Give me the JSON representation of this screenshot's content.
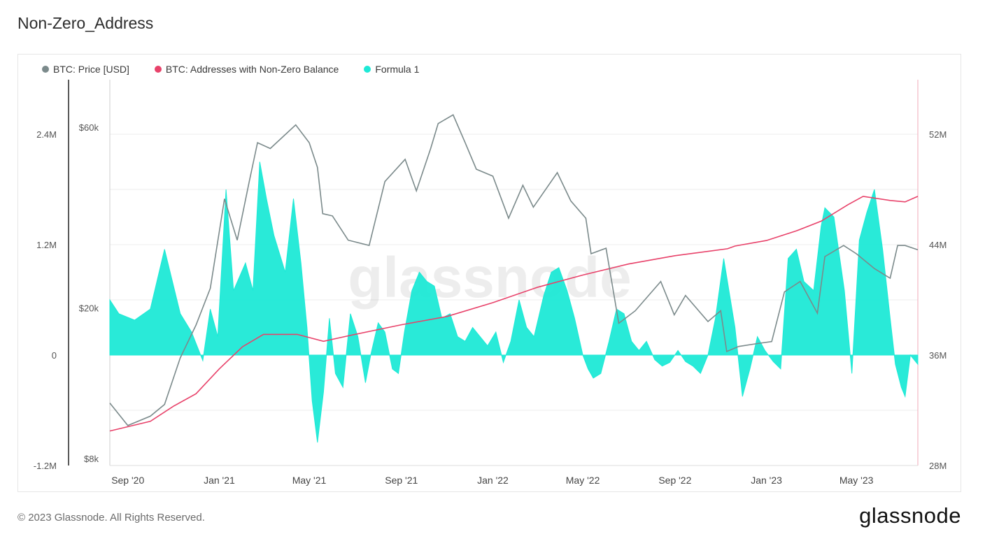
{
  "title": "Non-Zero_Address",
  "footer": "© 2023 Glassnode. All Rights Reserved.",
  "brand": "glassnode",
  "watermark": "glassnode",
  "legend": [
    {
      "label": "BTC: Price [USD]",
      "color": "#7b8a8b"
    },
    {
      "label": "BTC: Addresses with Non-Zero Balance",
      "color": "#e8426a"
    },
    {
      "label": "Formula 1",
      "color": "#1de9d6"
    }
  ],
  "chart_data": {
    "type": "line",
    "x_ticks": [
      "Sep '20",
      "Jan '21",
      "May '21",
      "Sep '21",
      "Jan '22",
      "May '22",
      "Sep '22",
      "Jan '23",
      "May '23"
    ],
    "x_tick_dates": [
      "2020-09-01",
      "2021-01-01",
      "2021-05-01",
      "2021-09-01",
      "2022-01-01",
      "2022-05-01",
      "2022-09-01",
      "2023-01-01",
      "2023-05-01"
    ],
    "x_range": [
      "2020-08-08",
      "2023-07-22"
    ],
    "axes": {
      "formula": {
        "ticks": [
          "2.4M",
          "1.2M",
          "0",
          "-1.2M"
        ],
        "range": [
          -1200000,
          2400000
        ]
      },
      "price": {
        "ticks": [
          "$60k",
          "$20k",
          "$8k"
        ],
        "scale": "log",
        "range": [
          8000,
          60000
        ]
      },
      "addresses": {
        "ticks": [
          "52M",
          "44M",
          "36M",
          "28M"
        ],
        "range": [
          28000000,
          52000000
        ]
      }
    },
    "series": [
      {
        "name": "BTC: Price [USD]",
        "color": "#7b8a8b",
        "x": [
          "2020-08-08",
          "2020-09-01",
          "2020-10-01",
          "2020-10-20",
          "2020-11-10",
          "2020-12-01",
          "2020-12-20",
          "2021-01-08",
          "2021-01-25",
          "2021-02-10",
          "2021-02-21",
          "2021-03-10",
          "2021-04-13",
          "2021-05-01",
          "2021-05-12",
          "2021-05-19",
          "2021-06-01",
          "2021-06-22",
          "2021-07-20",
          "2021-08-10",
          "2021-09-06",
          "2021-09-21",
          "2021-10-10",
          "2021-10-20",
          "2021-11-09",
          "2021-11-25",
          "2021-12-10",
          "2022-01-01",
          "2022-01-22",
          "2022-02-10",
          "2022-02-24",
          "2022-03-28",
          "2022-04-15",
          "2022-05-05",
          "2022-05-12",
          "2022-06-01",
          "2022-06-18",
          "2022-07-10",
          "2022-08-13",
          "2022-08-31",
          "2022-09-15",
          "2022-10-15",
          "2022-11-01",
          "2022-11-09",
          "2022-11-25",
          "2022-12-20",
          "2023-01-08",
          "2023-01-25",
          "2023-02-15",
          "2023-03-10",
          "2023-03-20",
          "2023-04-14",
          "2023-05-01",
          "2023-05-25",
          "2023-06-15",
          "2023-06-25",
          "2023-07-05",
          "2023-07-22"
        ],
        "values": [
          11700,
          10200,
          10800,
          11600,
          15400,
          18800,
          23500,
          40500,
          31500,
          45000,
          57000,
          55000,
          63500,
          57000,
          49000,
          37000,
          36500,
          31500,
          30500,
          45000,
          51500,
          42500,
          55000,
          64000,
          67500,
          57000,
          48500,
          46500,
          36000,
          44000,
          38500,
          47500,
          40000,
          36000,
          29000,
          30000,
          19000,
          20500,
          24500,
          20000,
          22500,
          19200,
          20500,
          16000,
          16500,
          16800,
          17000,
          23000,
          24500,
          20200,
          28500,
          30500,
          29000,
          26500,
          25000,
          30500,
          30500,
          29700
        ]
      },
      {
        "name": "BTC: Addresses with Non-Zero Balance",
        "color": "#e8426a",
        "x": [
          "2020-08-08",
          "2020-10-01",
          "2020-11-01",
          "2020-12-01",
          "2021-01-01",
          "2021-02-01",
          "2021-03-01",
          "2021-04-15",
          "2021-05-20",
          "2021-07-01",
          "2021-09-01",
          "2021-11-01",
          "2022-01-01",
          "2022-03-01",
          "2022-05-01",
          "2022-07-01",
          "2022-09-01",
          "2022-11-10",
          "2022-11-20",
          "2023-01-01",
          "2023-02-10",
          "2023-03-15",
          "2023-04-20",
          "2023-05-10",
          "2023-06-15",
          "2023-07-05",
          "2023-07-22"
        ],
        "values": [
          30500,
          31200,
          32300,
          33200,
          35000,
          36600,
          37500,
          37500,
          37000,
          37500,
          38200,
          38800,
          39800,
          40900,
          41800,
          42600,
          43200,
          43700,
          43900,
          44300,
          45000,
          45700,
          46900,
          47500,
          47200,
          47100,
          47500
        ]
      },
      {
        "name": "Formula 1",
        "color": "#1de9d6",
        "x": [
          "2020-08-08",
          "2020-08-20",
          "2020-09-10",
          "2020-10-01",
          "2020-10-20",
          "2020-11-10",
          "2020-11-25",
          "2020-12-10",
          "2020-12-20",
          "2020-12-30",
          "2021-01-10",
          "2021-01-20",
          "2021-02-05",
          "2021-02-15",
          "2021-02-24",
          "2021-03-05",
          "2021-03-15",
          "2021-03-30",
          "2021-04-10",
          "2021-04-20",
          "2021-04-28",
          "2021-05-05",
          "2021-05-12",
          "2021-05-20",
          "2021-05-28",
          "2021-06-05",
          "2021-06-15",
          "2021-06-25",
          "2021-07-05",
          "2021-07-15",
          "2021-07-22",
          "2021-08-01",
          "2021-08-10",
          "2021-08-20",
          "2021-08-28",
          "2021-09-05",
          "2021-09-15",
          "2021-09-25",
          "2021-10-05",
          "2021-10-15",
          "2021-10-25",
          "2021-11-05",
          "2021-11-15",
          "2021-11-25",
          "2021-12-05",
          "2021-12-15",
          "2021-12-25",
          "2022-01-05",
          "2022-01-15",
          "2022-01-25",
          "2022-02-05",
          "2022-02-15",
          "2022-02-25",
          "2022-03-10",
          "2022-03-20",
          "2022-03-30",
          "2022-04-10",
          "2022-04-20",
          "2022-05-01",
          "2022-05-08",
          "2022-05-15",
          "2022-05-25",
          "2022-06-05",
          "2022-06-15",
          "2022-06-25",
          "2022-07-05",
          "2022-07-15",
          "2022-07-25",
          "2022-08-05",
          "2022-08-15",
          "2022-08-25",
          "2022-09-05",
          "2022-09-15",
          "2022-09-25",
          "2022-10-05",
          "2022-10-15",
          "2022-10-25",
          "2022-11-05",
          "2022-11-12",
          "2022-11-20",
          "2022-11-30",
          "2022-12-10",
          "2022-12-20",
          "2022-12-30",
          "2023-01-10",
          "2023-01-20",
          "2023-01-30",
          "2023-02-10",
          "2023-02-20",
          "2023-03-05",
          "2023-03-15",
          "2023-03-20",
          "2023-04-01",
          "2023-04-15",
          "2023-04-25",
          "2023-05-05",
          "2023-05-15",
          "2023-05-25",
          "2023-06-05",
          "2023-06-15",
          "2023-06-22",
          "2023-06-30",
          "2023-07-05",
          "2023-07-12",
          "2023-07-22"
        ],
        "values": [
          600000,
          450000,
          380000,
          500000,
          1150000,
          450000,
          250000,
          -60000,
          500000,
          200000,
          1800000,
          700000,
          1000000,
          700000,
          2100000,
          1700000,
          1300000,
          900000,
          1700000,
          1000000,
          300000,
          -500000,
          -950000,
          -400000,
          400000,
          -200000,
          -350000,
          450000,
          200000,
          -300000,
          0,
          350000,
          250000,
          -150000,
          -200000,
          250000,
          700000,
          900000,
          800000,
          750000,
          400000,
          450000,
          200000,
          150000,
          300000,
          200000,
          100000,
          250000,
          -80000,
          150000,
          600000,
          300000,
          200000,
          650000,
          900000,
          950000,
          700000,
          400000,
          0,
          -150000,
          -250000,
          -200000,
          150000,
          500000,
          450000,
          150000,
          50000,
          150000,
          -50000,
          -120000,
          -80000,
          50000,
          -70000,
          -120000,
          -200000,
          0,
          400000,
          1050000,
          700000,
          300000,
          -450000,
          -150000,
          200000,
          50000,
          -70000,
          -150000,
          1050000,
          1150000,
          800000,
          700000,
          1400000,
          1600000,
          1500000,
          700000,
          -200000,
          1250000,
          1550000,
          1800000,
          1150000,
          400000,
          -100000,
          -350000,
          -450000,
          0,
          -100000
        ]
      }
    ],
    "grid": true
  }
}
